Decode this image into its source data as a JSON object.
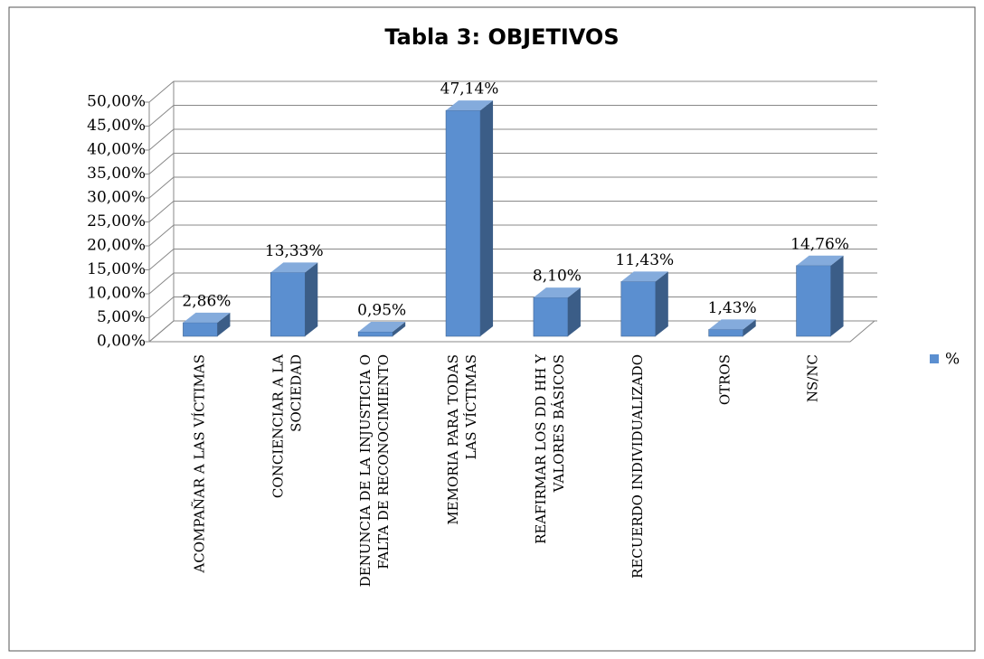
{
  "chart_data": {
    "type": "bar3d",
    "title": "Tabla 3: OBJETIVOS",
    "categories": [
      "ACOMPAÑAR A LAS VÍCTIMAS",
      "CONCIENCIAR A LA SOCIEDAD",
      "DENUNCIA DE LA INJUSTICIA O FALTA DE RECONOCIMIENTO",
      "MEMORIA PARA TODAS LAS VÍCTIMAS",
      "REAFIRMAR LOS DD HH Y VALORES BÁSICOS",
      "RECUERDO INDIVIDUALIZADO",
      "OTROS",
      "NS/NC"
    ],
    "series": [
      {
        "name": "%",
        "color": "#5b8fd0",
        "values": [
          2.86,
          13.33,
          0.95,
          47.14,
          8.1,
          11.43,
          1.43,
          14.76
        ],
        "value_labels": [
          "2,86%",
          "13,33%",
          "0,95%",
          "47,14%",
          "8,10%",
          "11,43%",
          "1,43%",
          "14,76%"
        ]
      }
    ],
    "ylim": [
      0,
      50
    ],
    "yticks": [
      {
        "value": 0,
        "label": "0,00%"
      },
      {
        "value": 5,
        "label": "5,00%"
      },
      {
        "value": 10,
        "label": "10,00%"
      },
      {
        "value": 15,
        "label": "15,00%"
      },
      {
        "value": 20,
        "label": "20,00%"
      },
      {
        "value": 25,
        "label": "25,00%"
      },
      {
        "value": 30,
        "label": "30,00%"
      },
      {
        "value": 35,
        "label": "35,00%"
      },
      {
        "value": 40,
        "label": "40,00%"
      },
      {
        "value": 45,
        "label": "45,00%"
      },
      {
        "value": 50,
        "label": "50,00%"
      }
    ],
    "grid": true,
    "legend": "right"
  }
}
